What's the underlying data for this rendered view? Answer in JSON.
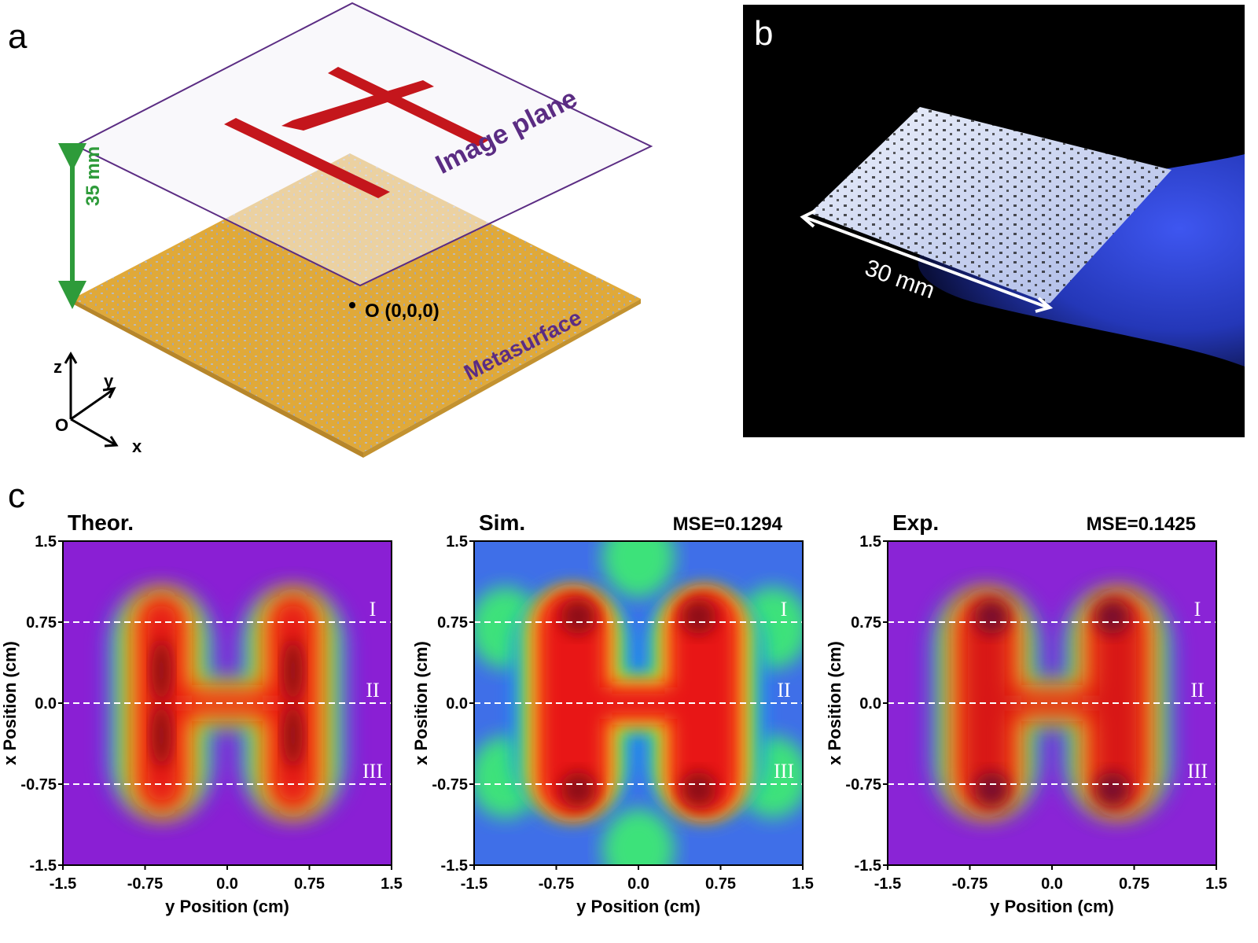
{
  "panel_a": {
    "label": "a",
    "distance": "35 mm",
    "image_plane_label": "Image plane",
    "metasurface_label": "Metasurface",
    "origin_label": "O (0,0,0)",
    "axes": {
      "z": "z",
      "y": "y",
      "x": "x",
      "o": "O"
    },
    "colors": {
      "metasurface": "#e0a939",
      "letter": "#c4161c",
      "plane_edge": "#5b2c83",
      "arrow": "#2e9b3a"
    }
  },
  "panel_b": {
    "label": "b",
    "size_label": "30 mm",
    "colors": {
      "background": "#000000",
      "glove": "#2a3fd4"
    }
  },
  "panel_c": {
    "label": "c",
    "line_labels": [
      "I",
      "II",
      "III"
    ],
    "xlabel": "y Position (cm)",
    "ylabel": "x Position (cm)",
    "ticks": [
      "-1.5",
      "-0.75",
      "0.0",
      "0.75",
      "1.5"
    ],
    "maps": [
      {
        "title": "Theor.",
        "mse": ""
      },
      {
        "title": "Sim.",
        "mse": "MSE=0.1294"
      },
      {
        "title": "Exp.",
        "mse": "MSE=0.1425"
      }
    ]
  },
  "chart_data": [
    {
      "type": "heatmap",
      "title": "Theor.",
      "xlabel": "y Position (cm)",
      "ylabel": "x Position (cm)",
      "xlim": [
        -1.5,
        1.5
      ],
      "ylim": [
        -1.5,
        1.5
      ],
      "lines_y": [
        0.75,
        0.0,
        -0.75
      ]
    },
    {
      "type": "heatmap",
      "title": "Sim.",
      "annotation": "MSE=0.1294",
      "xlabel": "y Position (cm)",
      "ylabel": "x Position (cm)",
      "xlim": [
        -1.5,
        1.5
      ],
      "ylim": [
        -1.5,
        1.5
      ],
      "lines_y": [
        0.75,
        0.0,
        -0.75
      ]
    },
    {
      "type": "heatmap",
      "title": "Exp.",
      "annotation": "MSE=0.1425",
      "xlabel": "y Position (cm)",
      "ylabel": "x Position (cm)",
      "xlim": [
        -1.5,
        1.5
      ],
      "ylim": [
        -1.5,
        1.5
      ],
      "lines_y": [
        0.75,
        0.0,
        -0.75
      ]
    }
  ]
}
